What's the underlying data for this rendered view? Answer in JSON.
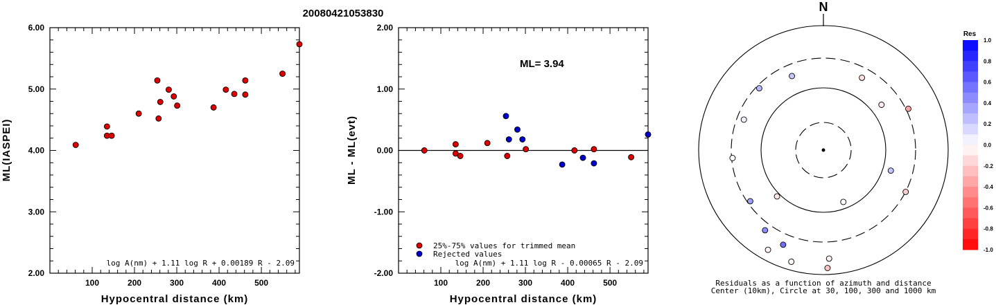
{
  "header": {
    "event_id": "20080421053830"
  },
  "chart_data": [
    {
      "type": "scatter",
      "xlabel": "Hypocentral distance (km)",
      "ylabel": "ML(IASPEI)",
      "xlim": [
        0,
        590
      ],
      "ylim": [
        2.0,
        6.0
      ],
      "x_ticks": [
        "100",
        "200",
        "300",
        "400",
        "500"
      ],
      "x_tick_values": [
        100,
        200,
        300,
        400,
        500
      ],
      "y_ticks": [
        "2.00",
        "3.00",
        "4.00",
        "5.00",
        "6.00"
      ],
      "y_tick_values": [
        2,
        3,
        4,
        5,
        6
      ],
      "formula": "log A(nm) + 1.11 log R + 0.00189 R - 2.09",
      "series": [
        {
          "color": "#dd0000",
          "points": [
            [
              61,
              4.09
            ],
            [
              135,
              4.39
            ],
            [
              135,
              4.24
            ],
            [
              146,
              4.24
            ],
            [
              210,
              4.6
            ],
            [
              254,
              5.14
            ],
            [
              257,
              4.52
            ],
            [
              261,
              4.79
            ],
            [
              281,
              4.99
            ],
            [
              293,
              4.88
            ],
            [
              301,
              4.73
            ],
            [
              387,
              4.7
            ],
            [
              416,
              4.99
            ],
            [
              436,
              4.92
            ],
            [
              462,
              5.14
            ],
            [
              462,
              4.91
            ],
            [
              550,
              5.25
            ],
            [
              590,
              5.73
            ]
          ]
        }
      ]
    },
    {
      "type": "scatter",
      "xlabel": "Hypocentral distance (km)",
      "ylabel": "ML - ML(evt)",
      "xlim": [
        0,
        590
      ],
      "ylim": [
        -2.0,
        2.0
      ],
      "x_ticks": [
        "100",
        "200",
        "300",
        "400",
        "500"
      ],
      "x_tick_values": [
        100,
        200,
        300,
        400,
        500
      ],
      "y_ticks": [
        "-2.00",
        "-1.00",
        "0.00",
        "1.00",
        "2.00"
      ],
      "y_tick_values": [
        -2,
        -1,
        0,
        1,
        2
      ],
      "annotation": "ML= 3.94",
      "formula": "log A(nm) + 1.11 log R - 0.00065 R - 2.09",
      "legend": [
        {
          "label": "25%-75% values for trimmed mean",
          "color": "#dd0000"
        },
        {
          "label": "Rejected values",
          "color": "#0000cc"
        }
      ],
      "series": [
        {
          "color": "#dd0000",
          "points": [
            [
              61,
              0.0
            ],
            [
              135,
              0.1
            ],
            [
              135,
              -0.05
            ],
            [
              146,
              -0.09
            ],
            [
              210,
              0.12
            ],
            [
              257,
              -0.09
            ],
            [
              301,
              0.02
            ],
            [
              416,
              0.0
            ],
            [
              462,
              0.02
            ],
            [
              550,
              -0.11
            ]
          ]
        },
        {
          "color": "#0000cc",
          "points": [
            [
              254,
              0.56
            ],
            [
              261,
              0.18
            ],
            [
              281,
              0.34
            ],
            [
              293,
              0.18
            ],
            [
              387,
              -0.23
            ],
            [
              436,
              -0.12
            ],
            [
              462,
              -0.21
            ],
            [
              590,
              0.26
            ]
          ]
        }
      ]
    },
    {
      "type": "scatter",
      "subtype": "polar",
      "north_label": "N",
      "caption_line1": "Residuals as a function of azimuth and distance",
      "caption_line2": "Center (10km), Circle at 30, 100, 300 and 1000 km",
      "rings": [
        {
          "label": "30",
          "style": "dashed"
        },
        {
          "label": "100",
          "style": "solid"
        },
        {
          "label": "300",
          "style": "dashed"
        },
        {
          "label": "1000",
          "style": "solid"
        }
      ],
      "points": [
        {
          "azimuth_deg": 314,
          "norm_r": 0.715,
          "res": 0.28
        },
        {
          "azimuth_deg": 337,
          "norm_r": 0.646,
          "res": 0.22
        },
        {
          "azimuth_deg": 28,
          "norm_r": 0.658,
          "res": -0.12
        },
        {
          "azimuth_deg": 52,
          "norm_r": 0.591,
          "res": -0.08
        },
        {
          "azimuth_deg": 64,
          "norm_r": 0.757,
          "res": -0.36
        },
        {
          "azimuth_deg": 291,
          "norm_r": 0.683,
          "res": 0.06
        },
        {
          "azimuth_deg": 265,
          "norm_r": 0.731,
          "res": 0.0
        },
        {
          "azimuth_deg": 107,
          "norm_r": 0.565,
          "res": 0.23
        },
        {
          "azimuth_deg": 117,
          "norm_r": 0.74,
          "res": -0.2
        },
        {
          "azimuth_deg": 159,
          "norm_r": 0.446,
          "res": 0.0
        },
        {
          "azimuth_deg": 225,
          "norm_r": 0.526,
          "res": -0.1
        },
        {
          "azimuth_deg": 235,
          "norm_r": 0.716,
          "res": 0.38
        },
        {
          "azimuth_deg": 216,
          "norm_r": 0.796,
          "res": 0.45
        },
        {
          "azimuth_deg": 203,
          "norm_r": 0.826,
          "res": 0.56
        },
        {
          "azimuth_deg": 209,
          "norm_r": 0.916,
          "res": -0.05
        },
        {
          "azimuth_deg": 196,
          "norm_r": 0.933,
          "res": -0.02
        },
        {
          "azimuth_deg": 177,
          "norm_r": 0.873,
          "res": -0.05
        },
        {
          "azimuth_deg": 178,
          "norm_r": 0.948,
          "res": -0.22
        }
      ]
    }
  ],
  "colorbar": {
    "title": "Res",
    "ticks": [
      "1.0",
      "0.8",
      "0.6",
      "0.4",
      "0.2",
      "0.0",
      "-0.2",
      "-0.4",
      "-0.6",
      "-0.8",
      "-1.0"
    ],
    "tick_values": [
      1.0,
      0.8,
      0.6,
      0.4,
      0.2,
      0.0,
      -0.2,
      -0.4,
      -0.6,
      -0.8,
      -1.0
    ]
  }
}
